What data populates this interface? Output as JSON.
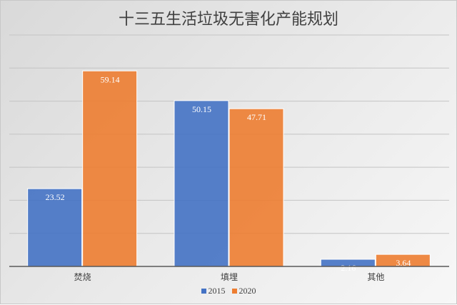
{
  "chart_data": {
    "type": "bar",
    "title": "十三五生活垃圾无害化产能规划",
    "categories": [
      "焚烧",
      "填埋",
      "其他"
    ],
    "series": [
      {
        "name": "2015",
        "values": [
          23.52,
          50.15,
          2.16
        ],
        "color": "#4472c4"
      },
      {
        "name": "2020",
        "values": [
          59.14,
          47.71,
          3.64
        ],
        "color": "#ed7d31"
      }
    ],
    "data_labels": [
      [
        "23.52",
        "50.15",
        "2.16"
      ],
      [
        "59.14",
        "47.71",
        "3.64"
      ]
    ],
    "xlabel": "",
    "ylabel": "",
    "ylim": [
      0,
      70
    ],
    "ytick_step": 10,
    "y_tick_labels_shown": false,
    "grid": true,
    "legend": "bottom"
  }
}
